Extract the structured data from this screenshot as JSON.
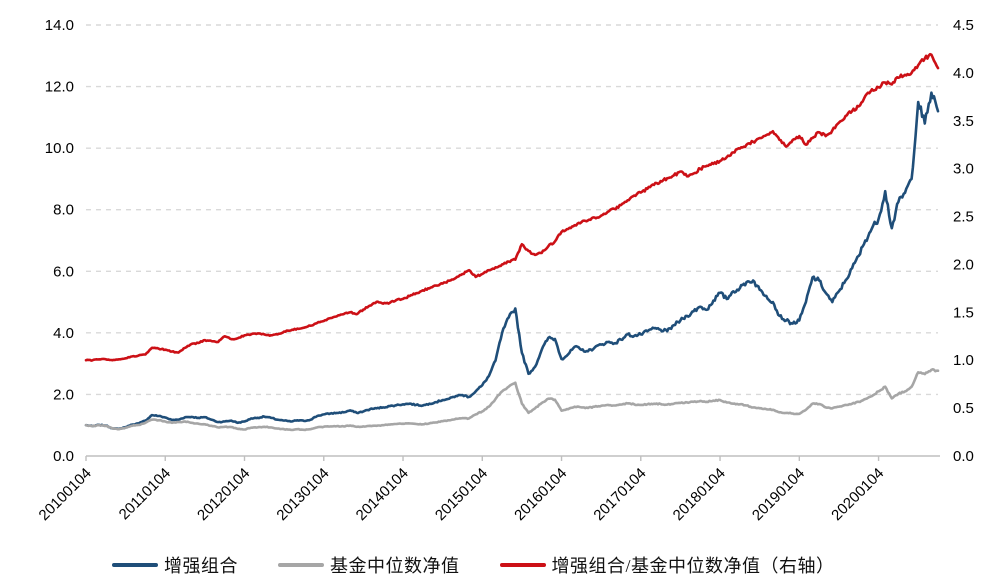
{
  "chart_data": {
    "type": "line",
    "title": "",
    "x_tick_labels": [
      "20100104",
      "20110104",
      "20120104",
      "20130104",
      "20140104",
      "20150104",
      "20160104",
      "20170104",
      "20180104",
      "20190104",
      "20200104"
    ],
    "x_months_per_tick": 12,
    "left_axis": {
      "min": 0,
      "max": 14,
      "step": 2,
      "tick_labels": [
        "0.0",
        "2.0",
        "4.0",
        "6.0",
        "8.0",
        "10.0",
        "12.0",
        "14.0"
      ]
    },
    "right_axis": {
      "min": 0,
      "max": 4.5,
      "step": 0.5,
      "tick_labels": [
        "0.0",
        "0.5",
        "1.0",
        "1.5",
        "2.0",
        "2.5",
        "3.0",
        "3.5",
        "4.0",
        "4.5"
      ]
    },
    "grid": {
      "on": true,
      "style": "dashed",
      "color": "#D9D9D9",
      "axis_color": "#BFBFBF"
    },
    "legend_position": "bottom",
    "series": [
      {
        "name": "增强组合",
        "axis": "left",
        "color": "#1F4E79",
        "noise": 0.013,
        "values": [
          1.0,
          0.97,
          1.01,
          0.99,
          0.9,
          0.88,
          0.94,
          1.02,
          1.06,
          1.15,
          1.33,
          1.3,
          1.25,
          1.17,
          1.18,
          1.26,
          1.27,
          1.24,
          1.26,
          1.18,
          1.1,
          1.12,
          1.15,
          1.08,
          1.12,
          1.22,
          1.24,
          1.28,
          1.24,
          1.18,
          1.15,
          1.12,
          1.16,
          1.14,
          1.18,
          1.3,
          1.35,
          1.38,
          1.4,
          1.42,
          1.48,
          1.4,
          1.45,
          1.52,
          1.55,
          1.58,
          1.62,
          1.65,
          1.68,
          1.7,
          1.66,
          1.64,
          1.7,
          1.75,
          1.82,
          1.86,
          1.95,
          1.98,
          1.92,
          2.1,
          2.3,
          2.6,
          3.1,
          4.0,
          4.5,
          4.79,
          3.35,
          2.67,
          2.9,
          3.45,
          3.84,
          3.8,
          3.15,
          3.3,
          3.55,
          3.45,
          3.4,
          3.52,
          3.62,
          3.7,
          3.66,
          3.78,
          3.95,
          3.9,
          3.95,
          4.05,
          4.15,
          4.1,
          4.05,
          4.25,
          4.4,
          4.55,
          4.7,
          4.85,
          4.75,
          5.05,
          5.3,
          5.1,
          5.35,
          5.45,
          5.65,
          5.7,
          5.4,
          5.2,
          5.0,
          4.55,
          4.4,
          4.3,
          4.4,
          5.0,
          5.8,
          5.7,
          5.3,
          5.0,
          5.35,
          5.7,
          6.1,
          6.5,
          7.0,
          7.4,
          7.7,
          8.6,
          7.4,
          8.25,
          8.55,
          9.0,
          11.5,
          10.8,
          11.8,
          11.2
        ]
      },
      {
        "name": "基金中位数净值",
        "axis": "left",
        "color": "#A6A6A6",
        "noise": 0.011,
        "values": [
          1.0,
          0.97,
          1.0,
          0.98,
          0.9,
          0.87,
          0.92,
          0.98,
          1.01,
          1.08,
          1.18,
          1.16,
          1.12,
          1.08,
          1.1,
          1.12,
          1.08,
          1.05,
          1.03,
          0.98,
          0.93,
          0.95,
          0.94,
          0.88,
          0.86,
          0.92,
          0.93,
          0.95,
          0.93,
          0.89,
          0.87,
          0.85,
          0.87,
          0.85,
          0.87,
          0.93,
          0.95,
          0.96,
          0.97,
          0.96,
          0.99,
          0.95,
          0.96,
          0.98,
          0.98,
          1.0,
          1.02,
          1.04,
          1.05,
          1.06,
          1.04,
          1.03,
          1.06,
          1.09,
          1.13,
          1.16,
          1.21,
          1.23,
          1.22,
          1.35,
          1.45,
          1.6,
          1.85,
          2.1,
          2.25,
          2.38,
          1.7,
          1.4,
          1.55,
          1.72,
          1.86,
          1.83,
          1.47,
          1.52,
          1.6,
          1.58,
          1.56,
          1.6,
          1.63,
          1.66,
          1.64,
          1.67,
          1.71,
          1.68,
          1.66,
          1.68,
          1.7,
          1.69,
          1.67,
          1.7,
          1.72,
          1.74,
          1.76,
          1.79,
          1.76,
          1.8,
          1.82,
          1.74,
          1.7,
          1.68,
          1.64,
          1.58,
          1.55,
          1.52,
          1.5,
          1.42,
          1.4,
          1.38,
          1.37,
          1.5,
          1.7,
          1.69,
          1.58,
          1.55,
          1.6,
          1.66,
          1.7,
          1.76,
          1.85,
          1.95,
          2.1,
          2.25,
          1.87,
          2.02,
          2.1,
          2.25,
          2.72,
          2.66,
          2.8,
          2.77
        ]
      },
      {
        "name": "增强组合/基金中位数净值（右轴）",
        "axis": "right",
        "color": "#CC1016",
        "noise": 0.005,
        "values": [
          1.0,
          1.0,
          1.01,
          1.01,
          1.0,
          1.01,
          1.02,
          1.04,
          1.05,
          1.06,
          1.13,
          1.12,
          1.11,
          1.09,
          1.08,
          1.13,
          1.17,
          1.18,
          1.21,
          1.2,
          1.19,
          1.25,
          1.22,
          1.23,
          1.26,
          1.27,
          1.28,
          1.27,
          1.26,
          1.27,
          1.3,
          1.31,
          1.33,
          1.34,
          1.36,
          1.39,
          1.41,
          1.44,
          1.46,
          1.48,
          1.5,
          1.48,
          1.53,
          1.57,
          1.61,
          1.59,
          1.6,
          1.63,
          1.64,
          1.67,
          1.7,
          1.73,
          1.75,
          1.78,
          1.8,
          1.83,
          1.86,
          1.9,
          1.94,
          1.87,
          1.9,
          1.94,
          1.97,
          2.0,
          2.03,
          2.05,
          2.21,
          2.14,
          2.1,
          2.12,
          2.19,
          2.24,
          2.34,
          2.37,
          2.41,
          2.44,
          2.46,
          2.49,
          2.51,
          2.55,
          2.58,
          2.62,
          2.67,
          2.72,
          2.75,
          2.79,
          2.83,
          2.87,
          2.9,
          2.93,
          2.97,
          2.92,
          2.95,
          3.0,
          3.03,
          3.05,
          3.08,
          3.12,
          3.17,
          3.21,
          3.25,
          3.28,
          3.32,
          3.35,
          3.39,
          3.3,
          3.23,
          3.3,
          3.34,
          3.25,
          3.32,
          3.38,
          3.34,
          3.4,
          3.48,
          3.55,
          3.6,
          3.65,
          3.76,
          3.83,
          3.85,
          3.9,
          3.88,
          3.95,
          3.98,
          4.0,
          4.08,
          4.15,
          4.19,
          4.05
        ]
      }
    ]
  }
}
